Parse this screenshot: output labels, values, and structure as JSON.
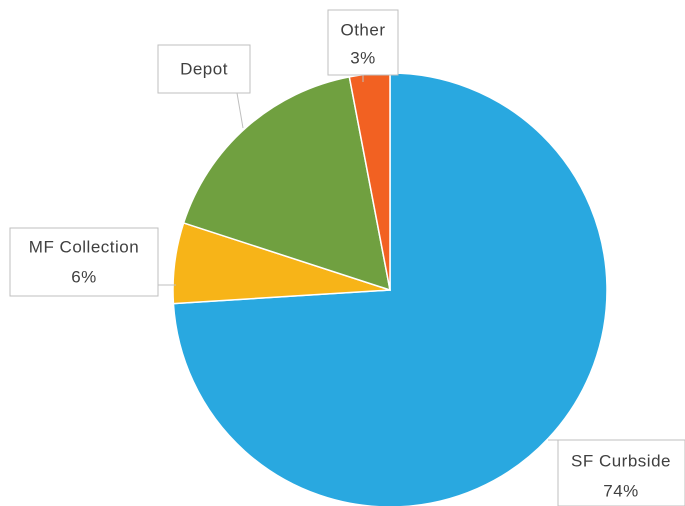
{
  "chart_data": {
    "type": "pie",
    "categories": [
      "SF Curbside",
      "MF Collection",
      "Depot",
      "Other"
    ],
    "values": [
      74,
      6,
      17,
      3
    ],
    "value_labels": [
      "74%",
      "6%",
      null,
      "3%"
    ],
    "colors": [
      "#29a8e0",
      "#f7b418",
      "#70a040",
      "#f26122"
    ]
  }
}
